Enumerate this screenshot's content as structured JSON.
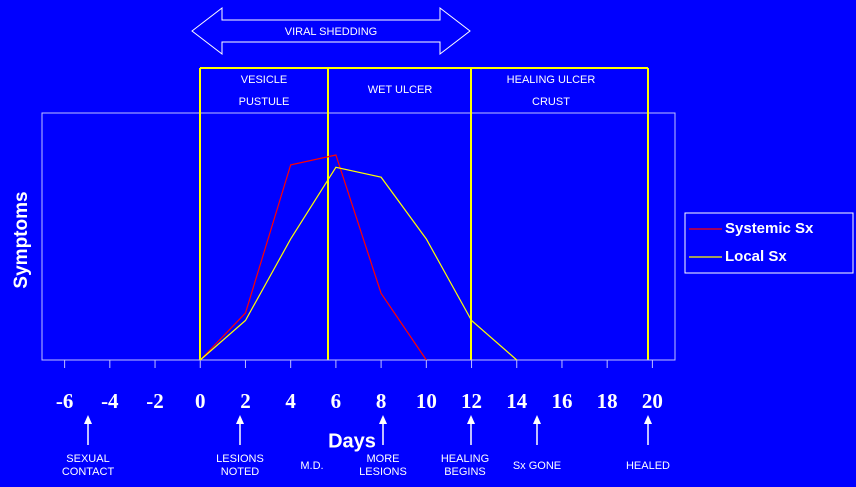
{
  "chart_data": {
    "type": "line",
    "xlabel": "Days",
    "ylabel": "Symptoms",
    "x": [
      0,
      2,
      4,
      6,
      8,
      10,
      12,
      14
    ],
    "series": [
      {
        "name": "Systemic Sx",
        "color": "#ff0000",
        "values": [
          0,
          19,
          79,
          83,
          27,
          0,
          null,
          null
        ]
      },
      {
        "name": "Local Sx",
        "color": "#ffff00",
        "values": [
          0,
          16,
          49,
          78,
          74,
          49,
          16,
          0
        ]
      }
    ],
    "xlim": [
      -7,
      21
    ],
    "xticks": [
      -6,
      -4,
      -2,
      0,
      2,
      4,
      6,
      8,
      10,
      12,
      14,
      16,
      18,
      20
    ],
    "ylim": [
      0,
      100
    ],
    "shedding": "VIRAL SHEDDING",
    "stages": [
      [
        "VESICLE",
        "PUSTULE"
      ],
      [
        "WET ULCER"
      ],
      [
        "HEALING ULCER",
        "CRUST"
      ]
    ],
    "events": [
      [
        "SEXUAL",
        "CONTACT"
      ],
      [
        "LESIONS",
        "NOTED"
      ],
      [
        "M.D."
      ],
      [
        "MORE",
        "LESIONS"
      ],
      [
        "HEALING",
        "BEGINS"
      ],
      [
        "Sx GONE"
      ],
      [
        "HEALED"
      ]
    ]
  }
}
